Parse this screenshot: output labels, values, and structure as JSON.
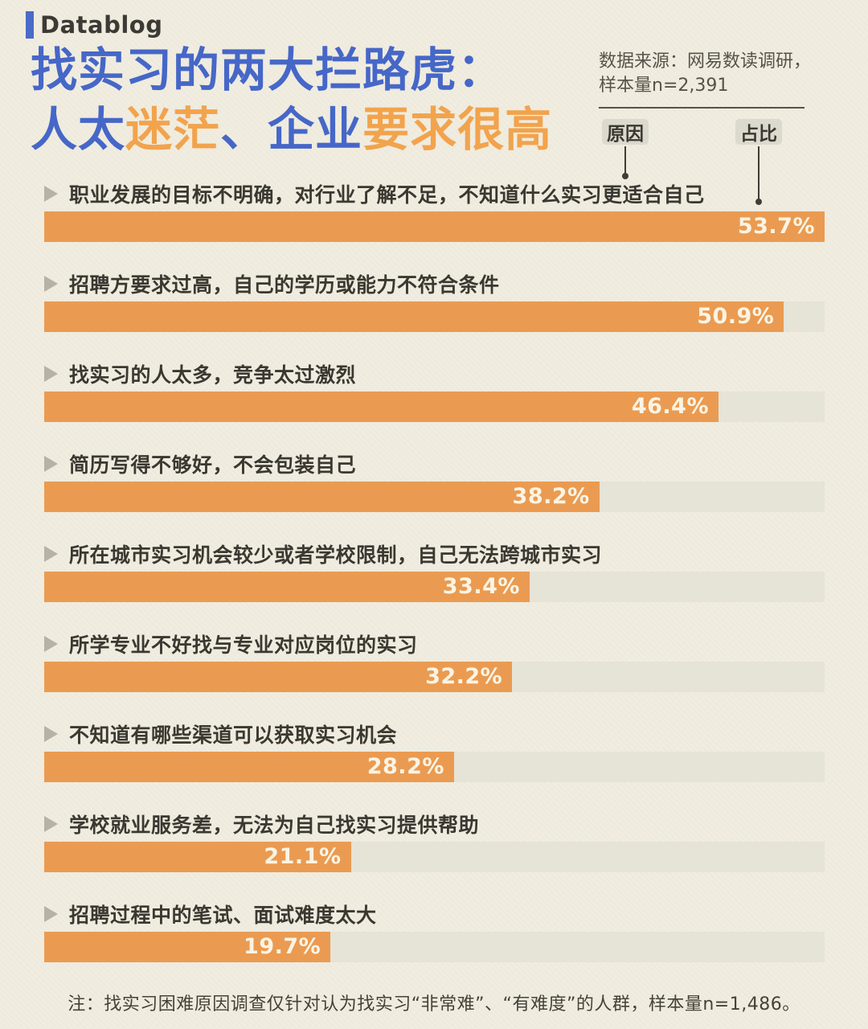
{
  "brand": {
    "label": "Datablog",
    "accent_color": "#4a6bc8"
  },
  "title": {
    "line1_segments": [
      {
        "text": "找实习的两大拦路虎：",
        "color": "blue"
      }
    ],
    "line2_segments": [
      {
        "text": "人太",
        "color": "blue"
      },
      {
        "text": "迷茫",
        "color": "orange"
      },
      {
        "text": "、",
        "color": "blue"
      },
      {
        "text": "企业",
        "color": "blue"
      },
      {
        "text": "要求很高",
        "color": "orange"
      }
    ],
    "blue_color": "#4667c8",
    "orange_color": "#f2a34c"
  },
  "source": {
    "line1": "数据来源：网易数读调研，",
    "line2": "样本量n=2,391"
  },
  "legend": {
    "reason_label": "原因",
    "share_label": "占比"
  },
  "chart_data": {
    "type": "bar",
    "orientation": "horizontal",
    "unit": "%",
    "max_value": 53.7,
    "categories": [
      "职业发展的目标不明确，对行业了解不足，不知道什么实习更适合自己",
      "招聘方要求过高，自己的学历或能力不符合条件",
      "找实习的人太多，竞争太过激烈",
      "简历写得不够好，不会包装自己",
      "所在城市实习机会较少或者学校限制，自己无法跨城市实习",
      "所学专业不好找与专业对应岗位的实习",
      "不知道有哪些渠道可以获取实习机会",
      "学校就业服务差，无法为自己找实习提供帮助",
      "招聘过程中的笔试、面试难度太大"
    ],
    "values": [
      53.7,
      50.9,
      46.4,
      38.2,
      33.4,
      32.2,
      28.2,
      21.1,
      19.7
    ],
    "value_labels": [
      "53.7%",
      "50.9%",
      "46.4%",
      "38.2%",
      "33.4%",
      "32.2%",
      "28.2%",
      "21.1%",
      "19.7%"
    ],
    "bar_color": "#ea9b51",
    "track_color": "#e6e3d7",
    "grid": false,
    "legend_position": "top-right"
  },
  "note": "注：找实习困难原因调查仅针对认为找实习“非常难”、“有难度”的人群，样本量n=1,486。"
}
